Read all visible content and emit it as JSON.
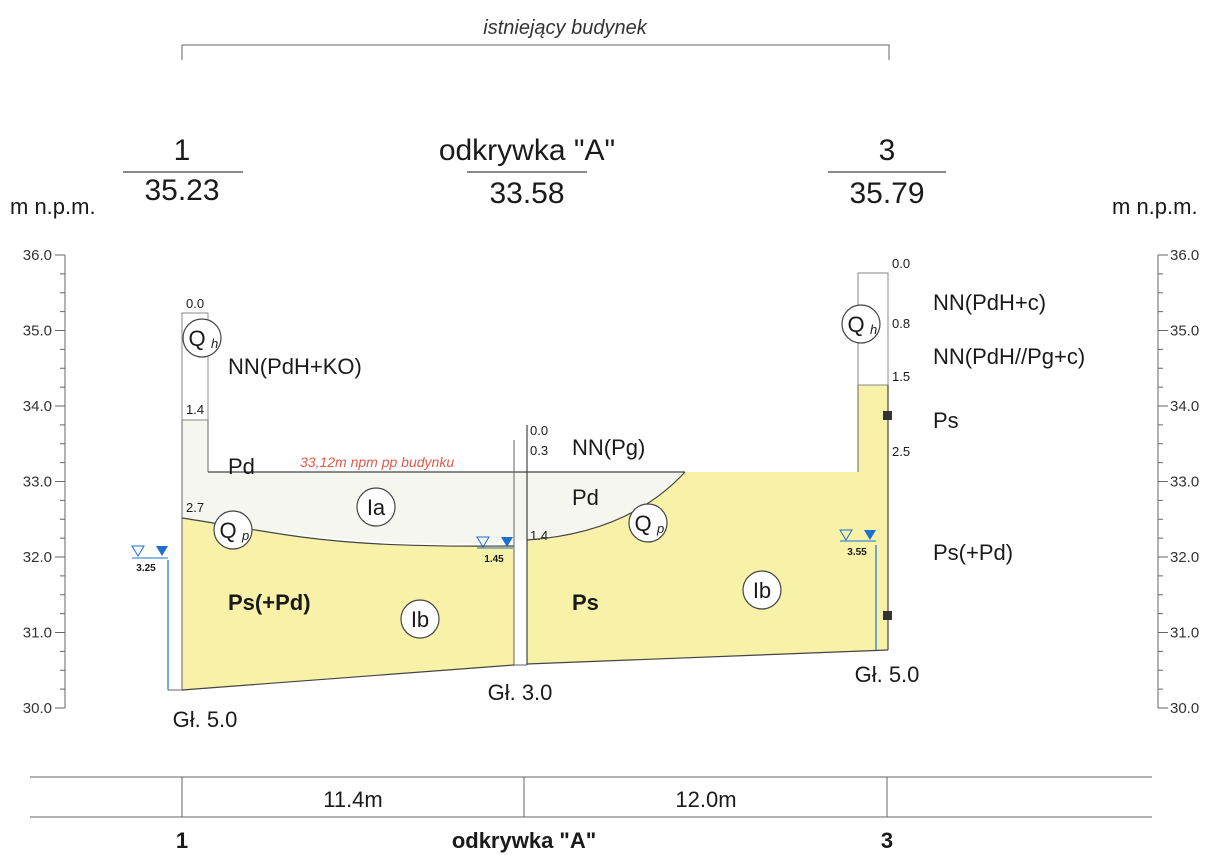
{
  "header": {
    "building_label": "istniejący budynek",
    "unit_left": "m n.p.m.",
    "unit_right": "m n.p.m."
  },
  "points": [
    {
      "name": "1",
      "elevation": "35.23",
      "depth_label": "Gł. 5.0"
    },
    {
      "name": "odkrywka \"A\"",
      "elevation": "33.58",
      "depth_label": "Gł. 3.0"
    },
    {
      "name": "3",
      "elevation": "35.79",
      "depth_label": "Gł. 5.0"
    }
  ],
  "axis": {
    "ticks": [
      "36.0",
      "35.0",
      "34.0",
      "33.0",
      "32.0",
      "31.0",
      "30.0"
    ]
  },
  "depths": {
    "p1": [
      "0.0",
      "1.4",
      "2.7"
    ],
    "pA": [
      "0.0",
      "0.3",
      "1.4"
    ],
    "p3": [
      "0.0",
      "0.8",
      "1.5",
      "2.5"
    ]
  },
  "water": {
    "p1": "3.25",
    "pA": "1.45",
    "p3": "3.55"
  },
  "layers": {
    "nn_p1": "NN(PdH+KO)",
    "pd_left": "Pd",
    "nn_pA": "NN(Pg)",
    "pd_right": "Pd",
    "nn_p3a": "NN(PdH+c)",
    "nn_p3b": "NN(PdH//Pg+c)",
    "ps_p3": "Ps",
    "ps_pd_p3": "Ps(+Pd)",
    "ps_pd_left": "Ps(+Pd)",
    "ps_mid": "Ps"
  },
  "symbols": {
    "qh": "Q",
    "qh_sub": "h",
    "qp": "Q",
    "qp_sub": "p",
    "ia": "Ia",
    "ib": "Ib"
  },
  "note": "33,12m npm pp budynku",
  "distances": [
    "11.4m",
    "12.0m"
  ],
  "footer": {
    "labels": [
      "1",
      "odkrywka \"A\"",
      "3"
    ]
  },
  "colors": {
    "sand_fill": "#f7f2a8",
    "fill_light": "#f6f6f0",
    "water_blue": "#1f6fd1",
    "note_red": "#e05a4a"
  }
}
